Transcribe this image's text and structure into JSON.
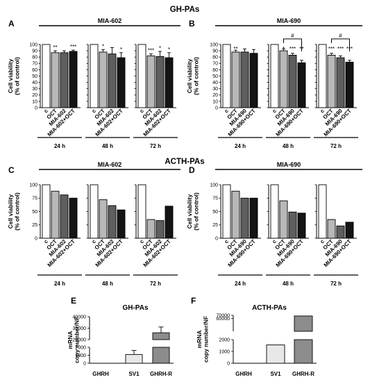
{
  "figure": {
    "title_top": "GH-PAs",
    "title_mid": "ACTH-PAs"
  },
  "chart_data": [
    {
      "id": "A",
      "type": "bar",
      "panel_letter": "A",
      "subtitle": "MIA-602",
      "ylabel": [
        "Cell viability",
        "(% of control)"
      ],
      "ylim": [
        0,
        100
      ],
      "yticks": [
        "0",
        "10",
        "20",
        "30",
        "40",
        "50",
        "60",
        "70",
        "80",
        "90",
        "100"
      ],
      "categories": [
        "c",
        "OCT",
        "MIA-602",
        "MIA-602+OCT"
      ],
      "groups": [
        {
          "label": "24 h",
          "values": [
            100,
            87,
            87,
            89
          ],
          "errors": [
            0,
            3,
            3,
            2
          ],
          "sig": [
            "",
            "**",
            "",
            "***"
          ]
        },
        {
          "label": "48 h",
          "values": [
            100,
            88,
            85,
            79
          ],
          "errors": [
            0,
            4,
            10,
            8
          ],
          "sig": [
            "",
            "*",
            "",
            "*"
          ]
        },
        {
          "label": "72 h",
          "values": [
            100,
            82,
            81,
            79
          ],
          "errors": [
            0,
            3,
            8,
            8
          ],
          "sig": [
            "",
            "***",
            "*",
            "*"
          ]
        }
      ]
    },
    {
      "id": "B",
      "type": "bar",
      "panel_letter": "B",
      "subtitle": "MIA-690",
      "ylabel": [
        "Cell viability",
        "(% of control)"
      ],
      "ylim": [
        0,
        100
      ],
      "yticks": [
        "0",
        "10",
        "20",
        "30",
        "40",
        "50",
        "60",
        "70",
        "80",
        "90",
        "100"
      ],
      "categories": [
        "c",
        "OCT",
        "MIA-690",
        "MIA-690+OCT"
      ],
      "groups": [
        {
          "label": "24 h",
          "values": [
            100,
            88,
            88,
            86
          ],
          "errors": [
            0,
            3,
            5,
            6
          ],
          "sig": [
            "",
            "**",
            "",
            ""
          ]
        },
        {
          "label": "48 h",
          "values": [
            100,
            90,
            83,
            71
          ],
          "errors": [
            0,
            3,
            3,
            4
          ],
          "sig": [
            "",
            "*",
            "***",
            "**"
          ],
          "bracket": "#"
        },
        {
          "label": "72 h",
          "values": [
            100,
            83,
            79,
            72
          ],
          "errors": [
            0,
            3,
            3,
            3
          ],
          "sig": [
            "",
            "***",
            "***",
            "***"
          ],
          "bracket": "#"
        }
      ]
    },
    {
      "id": "C",
      "type": "bar",
      "panel_letter": "C",
      "subtitle": "MIA-602",
      "ylabel": [
        "Cell viability",
        "(% of control)"
      ],
      "ylim": [
        0,
        100
      ],
      "yticks": [
        "0",
        "25",
        "50",
        "75",
        "100"
      ],
      "categories": [
        "c",
        "OCT",
        "MIA-602",
        "MIA-602+OCT"
      ],
      "groups": [
        {
          "label": "24 h",
          "values": [
            100,
            88,
            81,
            75
          ],
          "errors": [
            0,
            0,
            0,
            0
          ],
          "sig": [
            "",
            "",
            "",
            ""
          ]
        },
        {
          "label": "48 h",
          "values": [
            100,
            72,
            61,
            53
          ],
          "errors": [
            0,
            0,
            0,
            0
          ],
          "sig": [
            "",
            "",
            "",
            ""
          ]
        },
        {
          "label": "72 h",
          "values": [
            100,
            35,
            33,
            60
          ],
          "errors": [
            0,
            0,
            0,
            0
          ],
          "sig": [
            "",
            "",
            "",
            ""
          ]
        }
      ]
    },
    {
      "id": "D",
      "type": "bar",
      "panel_letter": "D",
      "subtitle": "MIA-690",
      "ylabel": [
        "Cell viability",
        "(% of control)"
      ],
      "ylim": [
        0,
        100
      ],
      "yticks": [
        "0",
        "25",
        "50",
        "75",
        "100"
      ],
      "categories": [
        "c",
        "OCT",
        "MIA-690",
        "MIA-690+OCT"
      ],
      "groups": [
        {
          "label": "24 h",
          "values": [
            100,
            88,
            75,
            75
          ],
          "errors": [
            0,
            0,
            0,
            0
          ],
          "sig": [
            "",
            "",
            "",
            ""
          ]
        },
        {
          "label": "48 h",
          "values": [
            100,
            70,
            49,
            47
          ],
          "errors": [
            0,
            0,
            0,
            0
          ],
          "sig": [
            "",
            "",
            "",
            ""
          ]
        },
        {
          "label": "72 h",
          "values": [
            100,
            35,
            23,
            30
          ],
          "errors": [
            0,
            0,
            0,
            0
          ],
          "sig": [
            "",
            "",
            "",
            ""
          ]
        }
      ]
    },
    {
      "id": "E",
      "type": "bar",
      "panel_letter": "E",
      "title": "GH-PAs",
      "ylabel": [
        "mRNA",
        "copy number/NF"
      ],
      "axis_break": {
        "lower": [
          0,
          2000
        ],
        "upper": [
          20000,
          40000
        ]
      },
      "yticks_upper": [
        "40000",
        "30000",
        "20000"
      ],
      "yticks_lower": [
        "2000",
        "1000",
        "0"
      ],
      "categories": [
        "GHRH",
        "SV1",
        "GHRH-R"
      ],
      "values": [
        0,
        1100,
        26000
      ],
      "errors": [
        0,
        500,
        5000
      ]
    },
    {
      "id": "F",
      "type": "bar",
      "panel_letter": "F",
      "title": "ACTH-PAs",
      "ylabel": [
        "mRNA",
        "copy number/NF"
      ],
      "axis_break": {
        "lower": [
          0,
          2000
        ],
        "upper": [
          20000,
          70000
        ]
      },
      "yticks_upper": [
        "70000",
        "60000"
      ],
      "yticks_lower": [
        "2000",
        "1000",
        "0"
      ],
      "categories": [
        "GHRH",
        "SV1",
        "GHRH-R"
      ],
      "values": [
        0,
        1550,
        68000
      ],
      "errors": [
        0,
        0,
        0
      ]
    }
  ],
  "colors": [
    "#ffffff",
    "#b8b8b8",
    "#5e5e5e",
    "#141414"
  ],
  "colors_ef": [
    "#ffffff",
    "#e8e8e8",
    "#8c8c8c"
  ]
}
